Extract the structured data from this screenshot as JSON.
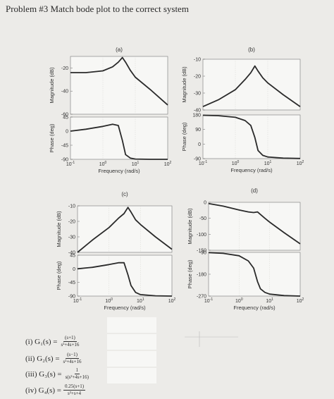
{
  "title": "Problem #3 Match bode plot to the correct system",
  "plot_labels": {
    "mag": "Magnitude (dB)",
    "phase": "Phase (deg)",
    "freq": "Frequency (rad/s)"
  },
  "x_ticks": [
    {
      "value": 0.1,
      "base": "10",
      "exp": "-1"
    },
    {
      "value": 1,
      "base": "10",
      "exp": "0"
    },
    {
      "value": 10,
      "base": "10",
      "exp": "1"
    },
    {
      "value": 100,
      "base": "10",
      "exp": "2"
    }
  ],
  "chart_data": [
    {
      "id": "a",
      "label": "(a)",
      "type": "line",
      "x_scale": "log",
      "xlim": [
        0.1,
        100
      ],
      "magnitude": {
        "ylim": [
          -60,
          -10
        ],
        "ticks": [
          -20,
          -40,
          -60
        ],
        "x": [
          0.1,
          0.3,
          1,
          2,
          3,
          4,
          5,
          7,
          10,
          30,
          100
        ],
        "y": [
          -24,
          -24,
          -22.5,
          -19,
          -15,
          -11,
          -15,
          -22,
          -28,
          -39,
          -52
        ]
      },
      "phase": {
        "ylim": [
          -90,
          45
        ],
        "ticks": [
          45,
          0,
          -45,
          -90
        ],
        "x": [
          0.1,
          0.3,
          1,
          2,
          3,
          4,
          5,
          7,
          10,
          30,
          100
        ],
        "y": [
          0,
          6,
          15,
          22,
          18,
          -30,
          -75,
          -86,
          -89,
          -90,
          -90
        ]
      }
    },
    {
      "id": "b",
      "label": "(b)",
      "type": "line",
      "x_scale": "log",
      "xlim": [
        0.1,
        100
      ],
      "magnitude": {
        "ylim": [
          -40,
          -10
        ],
        "ticks": [
          -10,
          -20,
          -30,
          -40
        ],
        "x": [
          0.1,
          0.3,
          1,
          2,
          3,
          4,
          5,
          7,
          10,
          30,
          100
        ],
        "y": [
          -38,
          -34,
          -28,
          -22,
          -18,
          -14,
          -17,
          -21,
          -24,
          -31,
          -38
        ]
      },
      "phase": {
        "ylim": [
          -90,
          180
        ],
        "ticks": [
          180,
          90,
          0,
          -90
        ],
        "x": [
          0.1,
          0.3,
          1,
          2,
          3,
          4,
          5,
          7,
          10,
          30,
          100
        ],
        "y": [
          178,
          175,
          165,
          145,
          115,
          40,
          -40,
          -70,
          -80,
          -87,
          -89
        ]
      }
    },
    {
      "id": "c",
      "label": "(c)",
      "type": "line",
      "x_scale": "log",
      "xlim": [
        0.1,
        100
      ],
      "magnitude": {
        "ylim": [
          -40,
          -10
        ],
        "ticks": [
          -10,
          -20,
          -30,
          -40
        ],
        "x": [
          0.1,
          0.3,
          1,
          2,
          3,
          4,
          5,
          7,
          10,
          30,
          100
        ],
        "y": [
          -40,
          -32,
          -24,
          -18,
          -15,
          -11,
          -14,
          -19,
          -22,
          -30,
          -38
        ]
      },
      "phase": {
        "ylim": [
          -90,
          45
        ],
        "ticks": [
          45,
          0,
          -45,
          -90
        ],
        "x": [
          0.1,
          0.3,
          1,
          2,
          3,
          4,
          5,
          7,
          10,
          30,
          100
        ],
        "y": [
          0,
          5,
          14,
          20,
          20,
          -20,
          -55,
          -78,
          -85,
          -89,
          -90
        ]
      }
    },
    {
      "id": "d",
      "label": "(d)",
      "type": "line",
      "x_scale": "log",
      "xlim": [
        0.1,
        100
      ],
      "magnitude": {
        "ylim": [
          -150,
          0
        ],
        "ticks": [
          0,
          -50,
          -100,
          -150
        ],
        "x": [
          0.1,
          0.3,
          1,
          2,
          3,
          4,
          5,
          7,
          10,
          30,
          100
        ],
        "y": [
          -4,
          -12,
          -24,
          -30,
          -32,
          -30,
          -38,
          -50,
          -62,
          -95,
          -130
        ]
      },
      "phase": {
        "ylim": [
          -270,
          -90
        ],
        "ticks": [
          -90,
          -180,
          -270
        ],
        "x": [
          0.1,
          0.3,
          1,
          2,
          3,
          4,
          5,
          7,
          10,
          30,
          100
        ],
        "y": [
          -91,
          -94,
          -104,
          -125,
          -155,
          -210,
          -240,
          -255,
          -262,
          -268,
          -270
        ]
      }
    }
  ],
  "equations": [
    {
      "lhs": "(i)  G₁(s) =",
      "num": "(s+1)",
      "den": "s²+4s+16"
    },
    {
      "lhs": "(ii)  G₂(s) =",
      "num": "(s−1)",
      "den": "s²+4s+16"
    },
    {
      "lhs": "(iii)  G₃(s) =",
      "num": "1",
      "den": "s(s²+4s+16)"
    },
    {
      "lhs": "(iv)  G₄(s) =",
      "num": "0.25(s+1)",
      "den": "s²+s+4"
    }
  ]
}
